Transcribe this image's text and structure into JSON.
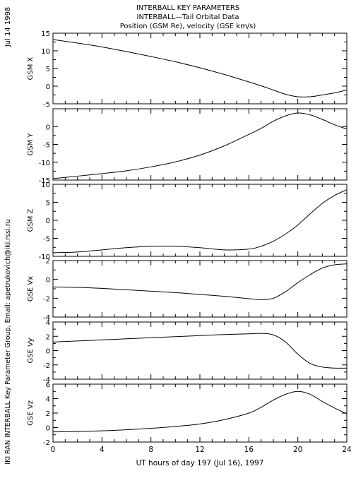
{
  "header": {
    "date_stamp": "Jul 14 1998",
    "title_lines": [
      "INTERBALL KEY PARAMETERS",
      "INTERBALL—Tail Orbital Data",
      "Position (GSM Re), velocity (GSE km/s)"
    ],
    "credit": "IKI RAN INTERBALL Key Parameter Group, Email: apetrukovich@iki.rssi.ru"
  },
  "chart_data": {
    "type": "line",
    "xlabel": "UT hours of day 197 (Jul 16), 1997",
    "xlim": [
      0,
      24
    ],
    "xticks": [
      0,
      4,
      8,
      12,
      16,
      20,
      24
    ],
    "grid": false,
    "panels": [
      {
        "ylabel": "GSM X",
        "ylim": [
          -5,
          15
        ],
        "yticks": [
          -5,
          0,
          5,
          10,
          15
        ],
        "x": [
          0,
          2,
          4,
          6,
          8,
          10,
          12,
          14,
          16,
          17,
          18,
          19,
          20,
          21,
          22,
          23,
          24
        ],
        "y": [
          13.2,
          12.2,
          11.1,
          9.8,
          8.4,
          6.9,
          5.2,
          3.3,
          1.2,
          0.1,
          -1.1,
          -2.3,
          -3.0,
          -3.0,
          -2.5,
          -1.9,
          -1.1
        ]
      },
      {
        "ylabel": "GSM Y",
        "ylim": [
          -15,
          5
        ],
        "yticks": [
          -15,
          -10,
          -5,
          0
        ],
        "x": [
          0,
          2,
          4,
          6,
          8,
          10,
          12,
          14,
          16,
          17,
          18,
          19,
          20,
          21,
          22,
          23,
          24
        ],
        "y": [
          -14.6,
          -13.9,
          -13.2,
          -12.4,
          -11.3,
          -9.9,
          -8.0,
          -5.4,
          -2.2,
          -0.5,
          1.5,
          3.0,
          3.8,
          3.3,
          2.0,
          0.5,
          -0.7
        ]
      },
      {
        "ylabel": "GSM Z",
        "ylim": [
          -10,
          10
        ],
        "yticks": [
          -10,
          -5,
          0,
          5,
          10
        ],
        "x": [
          0,
          2,
          4,
          6,
          8,
          10,
          12,
          14,
          16,
          17,
          18,
          19,
          20,
          21,
          22,
          23,
          24
        ],
        "y": [
          -9.0,
          -8.8,
          -8.2,
          -7.6,
          -7.2,
          -7.2,
          -7.6,
          -8.2,
          -8.0,
          -7.2,
          -5.8,
          -3.8,
          -1.3,
          1.8,
          4.7,
          6.9,
          8.5
        ]
      },
      {
        "ylabel": "GSE Vx",
        "ylim": [
          -4,
          2
        ],
        "yticks": [
          -4,
          -2,
          0,
          2
        ],
        "x": [
          0,
          2,
          4,
          6,
          8,
          10,
          12,
          14,
          16,
          17,
          18,
          19,
          20,
          21,
          22,
          23,
          24
        ],
        "y": [
          -0.8,
          -0.85,
          -0.95,
          -1.1,
          -1.25,
          -1.4,
          -1.6,
          -1.8,
          -2.05,
          -2.15,
          -2.0,
          -1.3,
          -0.35,
          0.5,
          1.2,
          1.55,
          1.65
        ]
      },
      {
        "ylabel": "GSE Vy",
        "ylim": [
          -4,
          4
        ],
        "yticks": [
          -4,
          -2,
          0,
          2,
          4
        ],
        "x": [
          0,
          2,
          4,
          6,
          8,
          10,
          12,
          14,
          16,
          17,
          18,
          19,
          20,
          21,
          22,
          23,
          24
        ],
        "y": [
          1.2,
          1.35,
          1.5,
          1.65,
          1.8,
          1.95,
          2.1,
          2.25,
          2.35,
          2.4,
          2.2,
          1.2,
          -0.5,
          -1.8,
          -2.3,
          -2.45,
          -2.45
        ]
      },
      {
        "ylabel": "GSE Vz",
        "ylim": [
          -2,
          6
        ],
        "yticks": [
          -2,
          0,
          2,
          4,
          6
        ],
        "x": [
          0,
          2,
          4,
          6,
          8,
          10,
          12,
          14,
          16,
          17,
          18,
          19,
          20,
          21,
          22,
          23,
          24
        ],
        "y": [
          -0.6,
          -0.55,
          -0.45,
          -0.3,
          -0.1,
          0.15,
          0.5,
          1.1,
          2.0,
          2.8,
          3.8,
          4.6,
          5.0,
          4.6,
          3.6,
          2.7,
          1.9
        ]
      }
    ]
  }
}
